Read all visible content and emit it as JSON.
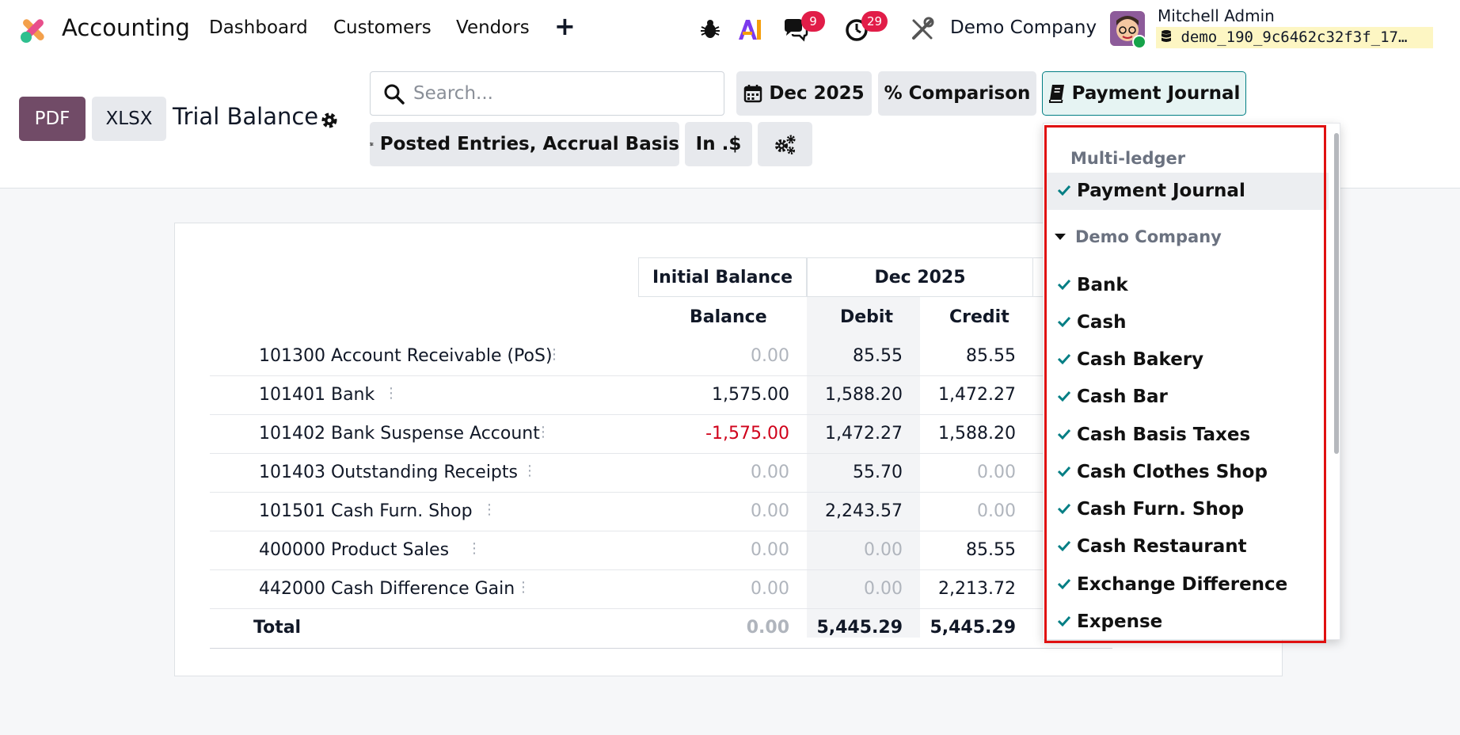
{
  "topbar": {
    "app_name": "Accounting",
    "menu": [
      "Dashboard",
      "Customers",
      "Vendors"
    ],
    "messages_count": "9",
    "activities_count": "29",
    "company": "Demo Company",
    "user_name": "Mitchell Admin",
    "database": "demo_190_9c6462c32f3f_17…"
  },
  "controls": {
    "pdf_label": "PDF",
    "xlsx_label": "XLSX",
    "report_title": "Trial Balance",
    "search_placeholder": "Search...",
    "date_filter": "Dec 2025",
    "comparison": "Comparison",
    "journal_filter": "Payment Journal",
    "entries_filter": "Posted Entries, Accrual Basis",
    "currency_filter": "In .$"
  },
  "table": {
    "group_headers": [
      "Initial Balance",
      "Dec 2025"
    ],
    "sub_headers": [
      "Balance",
      "Debit",
      "Credit"
    ],
    "rows": [
      {
        "name": "101300 Account Receivable (PoS)",
        "balance": "0.00",
        "debit": "85.55",
        "credit": "85.55"
      },
      {
        "name": "101401 Bank",
        "balance": "1,575.00",
        "debit": "1,588.20",
        "credit": "1,472.27"
      },
      {
        "name": "101402 Bank Suspense Account",
        "balance": "-1,575.00",
        "debit": "1,472.27",
        "credit": "1,588.20"
      },
      {
        "name": "101403 Outstanding Receipts",
        "balance": "0.00",
        "debit": "55.70",
        "credit": "0.00"
      },
      {
        "name": "101501 Cash Furn. Shop",
        "balance": "0.00",
        "debit": "2,243.57",
        "credit": "0.00"
      },
      {
        "name": "400000 Product Sales",
        "balance": "0.00",
        "debit": "0.00",
        "credit": "85.55"
      },
      {
        "name": "442000 Cash Difference Gain",
        "balance": "0.00",
        "debit": "0.00",
        "credit": "2,213.72"
      }
    ],
    "total": {
      "name": "Total",
      "balance": "0.00",
      "debit": "5,445.29",
      "credit": "5,445.29"
    }
  },
  "dropdown": {
    "section": "Multi-ledger",
    "selected": "Payment Journal",
    "company_group": "Demo Company",
    "journals": [
      "Bank",
      "Cash",
      "Cash Bakery",
      "Cash Bar",
      "Cash Basis Taxes",
      "Cash Clothes Shop",
      "Cash Furn. Shop",
      "Cash Restaurant",
      "Exchange Difference",
      "Expense"
    ]
  },
  "colors": {
    "brand": "#714b67",
    "accent": "#017e84",
    "badge": "#e11d48",
    "highlight_box": "#e01010",
    "negative": "#d0021b"
  }
}
